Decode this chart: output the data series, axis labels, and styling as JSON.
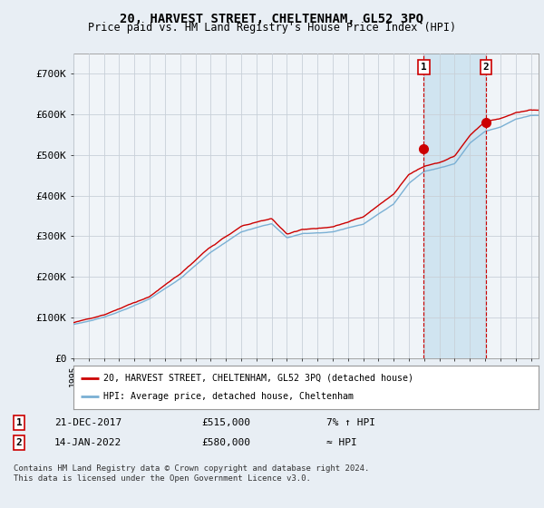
{
  "title": "20, HARVEST STREET, CHELTENHAM, GL52 3PQ",
  "subtitle": "Price paid vs. HM Land Registry's House Price Index (HPI)",
  "title_fontsize": 10,
  "subtitle_fontsize": 8.5,
  "ylim": [
    0,
    750000
  ],
  "yticks": [
    0,
    100000,
    200000,
    300000,
    400000,
    500000,
    600000,
    700000
  ],
  "ytick_labels": [
    "£0",
    "£100K",
    "£200K",
    "£300K",
    "£400K",
    "£500K",
    "£600K",
    "£700K"
  ],
  "xlim_start": 1995.0,
  "xlim_end": 2025.5,
  "line_color_price": "#cc0000",
  "line_color_hpi": "#7ab0d4",
  "bg_color": "#e8eef4",
  "plot_bg_color": "#f0f4f8",
  "shade_color": "#d0e4f0",
  "grid_color": "#c8d0d8",
  "sale1_x": 2017.97,
  "sale1_y": 515000,
  "sale1_label": "1",
  "sale1_date": "21-DEC-2017",
  "sale1_price": "£515,000",
  "sale1_note": "7% ↑ HPI",
  "sale2_x": 2022.04,
  "sale2_y": 580000,
  "sale2_label": "2",
  "sale2_date": "14-JAN-2022",
  "sale2_price": "£580,000",
  "sale2_note": "≈ HPI",
  "legend_line1": "20, HARVEST STREET, CHELTENHAM, GL52 3PQ (detached house)",
  "legend_line2": "HPI: Average price, detached house, Cheltenham",
  "footer": "Contains HM Land Registry data © Crown copyright and database right 2024.\nThis data is licensed under the Open Government Licence v3.0.",
  "marker_box_color": "#cc0000"
}
